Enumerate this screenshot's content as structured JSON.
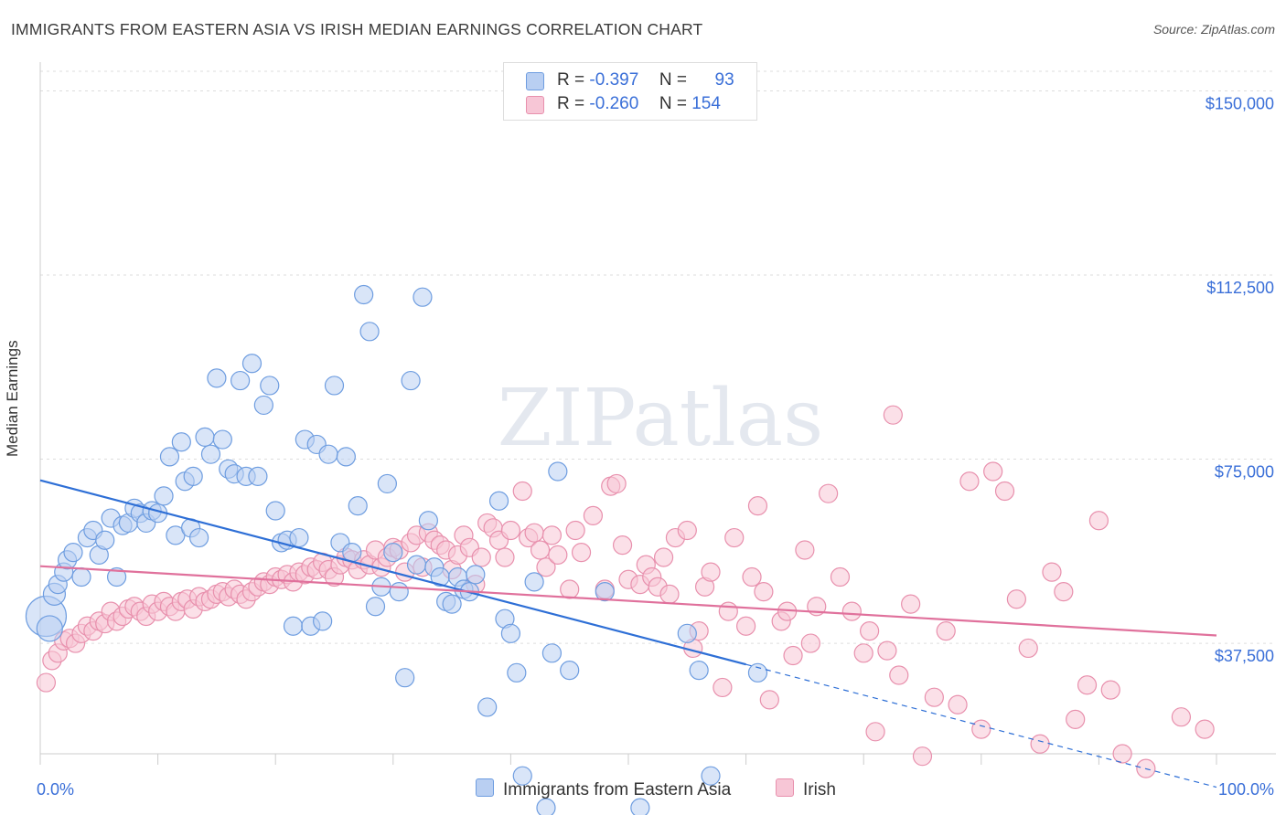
{
  "chart_data": {
    "type": "scatter",
    "title": "IMMIGRANTS FROM EASTERN ASIA VS IRISH MEDIAN EARNINGS CORRELATION CHART",
    "source": "Source: ZipAtlas.com",
    "watermark": "ZIPatlas",
    "xlabel": "",
    "ylabel": "Median Earnings",
    "xlim": [
      0,
      100
    ],
    "ylim": [
      15000,
      154000
    ],
    "x_tick_labels": [
      "0.0%",
      "100.0%"
    ],
    "y_ticks": [
      {
        "value": 150000,
        "label": "$150,000"
      },
      {
        "value": 112500,
        "label": "$112,500"
      },
      {
        "value": 75000,
        "label": "$75,000"
      },
      {
        "value": 37500,
        "label": "$37,500"
      }
    ],
    "legend": [
      {
        "r_label": "R =",
        "r_value": "-0.397",
        "n_label": "N =",
        "n_value": "93"
      },
      {
        "r_label": "R =",
        "r_value": "-0.260",
        "n_label": "N =",
        "n_value": "154"
      }
    ],
    "series": [
      {
        "name": "Immigrants from Eastern Asia",
        "color": "#6e9de0",
        "fill": "#b9cff2",
        "line_color": "#2e6fd6",
        "trend": {
          "x0": 0,
          "y0": 70700,
          "x1": 60,
          "y1": 33200,
          "dash_to_x": 100,
          "dash_to_y": 8200
        },
        "points": [
          [
            0.5,
            43000
          ],
          [
            0.8,
            40500
          ],
          [
            1.2,
            47500
          ],
          [
            1.5,
            49500
          ],
          [
            2,
            52000
          ],
          [
            2.3,
            54500
          ],
          [
            2.8,
            56000
          ],
          [
            3.5,
            51000
          ],
          [
            4,
            59000
          ],
          [
            4.5,
            60500
          ],
          [
            5,
            55500
          ],
          [
            5.5,
            58500
          ],
          [
            6,
            63000
          ],
          [
            6.5,
            51000
          ],
          [
            7,
            61500
          ],
          [
            7.5,
            62000
          ],
          [
            8,
            65000
          ],
          [
            8.5,
            64000
          ],
          [
            9,
            62000
          ],
          [
            9.5,
            64500
          ],
          [
            10,
            64000
          ],
          [
            10.5,
            67500
          ],
          [
            11,
            75500
          ],
          [
            11.5,
            59500
          ],
          [
            12,
            78500
          ],
          [
            12.3,
            70500
          ],
          [
            12.8,
            61000
          ],
          [
            13,
            71500
          ],
          [
            13.5,
            59000
          ],
          [
            14,
            79500
          ],
          [
            14.5,
            76000
          ],
          [
            15,
            91500
          ],
          [
            15.5,
            79000
          ],
          [
            16,
            73000
          ],
          [
            16.5,
            72000
          ],
          [
            17,
            91000
          ],
          [
            17.5,
            71500
          ],
          [
            18,
            94500
          ],
          [
            18.5,
            71500
          ],
          [
            19,
            86000
          ],
          [
            19.5,
            90000
          ],
          [
            20,
            64500
          ],
          [
            20.5,
            58000
          ],
          [
            21,
            58500
          ],
          [
            21.5,
            41000
          ],
          [
            22,
            59000
          ],
          [
            22.5,
            79000
          ],
          [
            23,
            41000
          ],
          [
            23.5,
            78000
          ],
          [
            24,
            42000
          ],
          [
            24.5,
            76000
          ],
          [
            25,
            90000
          ],
          [
            25.5,
            58000
          ],
          [
            26,
            75500
          ],
          [
            26.5,
            56000
          ],
          [
            27,
            65500
          ],
          [
            27.5,
            108500
          ],
          [
            28,
            101000
          ],
          [
            28.5,
            45000
          ],
          [
            29,
            49000
          ],
          [
            29.5,
            70000
          ],
          [
            30,
            56000
          ],
          [
            30.5,
            48000
          ],
          [
            31,
            30500
          ],
          [
            31.5,
            91000
          ],
          [
            32,
            53500
          ],
          [
            32.5,
            108000
          ],
          [
            33,
            62500
          ],
          [
            33.5,
            53000
          ],
          [
            34,
            51000
          ],
          [
            34.5,
            46000
          ],
          [
            35,
            45500
          ],
          [
            35.5,
            51000
          ],
          [
            36,
            48500
          ],
          [
            36.5,
            48000
          ],
          [
            37,
            51500
          ],
          [
            38,
            24500
          ],
          [
            39,
            66500
          ],
          [
            39.5,
            42500
          ],
          [
            40,
            39500
          ],
          [
            40.5,
            31500
          ],
          [
            41,
            10500
          ],
          [
            42,
            50000
          ],
          [
            43,
            4000
          ],
          [
            43.5,
            35500
          ],
          [
            44,
            72500
          ],
          [
            45,
            32000
          ],
          [
            48,
            48000
          ],
          [
            51,
            4000
          ],
          [
            55,
            39500
          ],
          [
            56,
            32000
          ],
          [
            57,
            10500
          ],
          [
            61,
            31500
          ]
        ]
      },
      {
        "name": "Irish",
        "color": "#e890ad",
        "fill": "#f7c6d6",
        "line_color": "#e0719c",
        "trend": {
          "x0": 0,
          "y0": 53200,
          "x1": 100,
          "y1": 39100
        },
        "points": [
          [
            0.5,
            29500
          ],
          [
            1,
            34000
          ],
          [
            1.5,
            35500
          ],
          [
            2,
            38000
          ],
          [
            2.5,
            38500
          ],
          [
            3,
            37500
          ],
          [
            3.5,
            39500
          ],
          [
            4,
            41000
          ],
          [
            4.5,
            40000
          ],
          [
            5,
            42000
          ],
          [
            5.5,
            41500
          ],
          [
            6,
            44000
          ],
          [
            6.5,
            42000
          ],
          [
            7,
            43000
          ],
          [
            7.5,
            44500
          ],
          [
            8,
            45000
          ],
          [
            8.5,
            44000
          ],
          [
            9,
            43000
          ],
          [
            9.5,
            45500
          ],
          [
            10,
            44000
          ],
          [
            10.5,
            46000
          ],
          [
            11,
            45000
          ],
          [
            11.5,
            44000
          ],
          [
            12,
            46000
          ],
          [
            12.5,
            46500
          ],
          [
            13,
            44500
          ],
          [
            13.5,
            47000
          ],
          [
            14,
            46000
          ],
          [
            14.5,
            46500
          ],
          [
            15,
            47500
          ],
          [
            15.5,
            48000
          ],
          [
            16,
            47000
          ],
          [
            16.5,
            48500
          ],
          [
            17,
            47500
          ],
          [
            17.5,
            46500
          ],
          [
            18,
            48000
          ],
          [
            18.5,
            49000
          ],
          [
            19,
            50000
          ],
          [
            19.5,
            49500
          ],
          [
            20,
            51000
          ],
          [
            20.5,
            50500
          ],
          [
            21,
            51500
          ],
          [
            21.5,
            50000
          ],
          [
            22,
            52000
          ],
          [
            22.5,
            51500
          ],
          [
            23,
            53000
          ],
          [
            23.5,
            52500
          ],
          [
            24,
            54000
          ],
          [
            24.5,
            52500
          ],
          [
            25,
            51000
          ],
          [
            25.5,
            53500
          ],
          [
            26,
            55000
          ],
          [
            26.5,
            54500
          ],
          [
            27,
            52500
          ],
          [
            27.5,
            54500
          ],
          [
            28,
            53500
          ],
          [
            28.5,
            56500
          ],
          [
            29,
            53000
          ],
          [
            29.5,
            55000
          ],
          [
            30,
            57000
          ],
          [
            30.5,
            56500
          ],
          [
            31,
            52000
          ],
          [
            31.5,
            58000
          ],
          [
            32,
            59500
          ],
          [
            32.5,
            53000
          ],
          [
            33,
            60000
          ],
          [
            33.5,
            58500
          ],
          [
            34,
            57500
          ],
          [
            34.5,
            56500
          ],
          [
            35,
            52500
          ],
          [
            35.5,
            55500
          ],
          [
            36,
            59500
          ],
          [
            36.5,
            57000
          ],
          [
            37,
            49500
          ],
          [
            37.5,
            55000
          ],
          [
            38,
            62000
          ],
          [
            38.5,
            61000
          ],
          [
            39,
            58500
          ],
          [
            39.5,
            55000
          ],
          [
            40,
            60500
          ],
          [
            41,
            68500
          ],
          [
            41.5,
            59000
          ],
          [
            42,
            60000
          ],
          [
            42.5,
            56500
          ],
          [
            43,
            53000
          ],
          [
            43.5,
            59500
          ],
          [
            44,
            55500
          ],
          [
            45,
            48500
          ],
          [
            45.5,
            60500
          ],
          [
            46,
            56000
          ],
          [
            47,
            63500
          ],
          [
            48,
            48500
          ],
          [
            48.5,
            69500
          ],
          [
            49,
            70000
          ],
          [
            49.5,
            57500
          ],
          [
            50,
            50500
          ],
          [
            51,
            49500
          ],
          [
            51.5,
            53500
          ],
          [
            52,
            51000
          ],
          [
            52.5,
            49000
          ],
          [
            53,
            55000
          ],
          [
            53.5,
            47500
          ],
          [
            54,
            59000
          ],
          [
            55,
            60500
          ],
          [
            55.5,
            36500
          ],
          [
            56,
            40000
          ],
          [
            56.5,
            49000
          ],
          [
            57,
            52000
          ],
          [
            58,
            28500
          ],
          [
            58.5,
            44000
          ],
          [
            59,
            59000
          ],
          [
            60,
            41000
          ],
          [
            60.5,
            51000
          ],
          [
            61,
            65500
          ],
          [
            61.5,
            48000
          ],
          [
            62,
            26000
          ],
          [
            63,
            42000
          ],
          [
            63.5,
            44000
          ],
          [
            64,
            35000
          ],
          [
            65,
            56500
          ],
          [
            65.5,
            37500
          ],
          [
            66,
            45000
          ],
          [
            67,
            68000
          ],
          [
            68,
            51000
          ],
          [
            69,
            44000
          ],
          [
            70,
            35500
          ],
          [
            70.5,
            40000
          ],
          [
            71,
            19500
          ],
          [
            72,
            36000
          ],
          [
            72.5,
            84000
          ],
          [
            73,
            31000
          ],
          [
            74,
            45500
          ],
          [
            75,
            14500
          ],
          [
            76,
            26500
          ],
          [
            77,
            40000
          ],
          [
            78,
            25000
          ],
          [
            79,
            70500
          ],
          [
            80,
            20000
          ],
          [
            81,
            72500
          ],
          [
            82,
            68500
          ],
          [
            83,
            46500
          ],
          [
            84,
            36500
          ],
          [
            85,
            17000
          ],
          [
            86,
            52000
          ],
          [
            87,
            48000
          ],
          [
            88,
            22000
          ],
          [
            89,
            29000
          ],
          [
            90,
            62500
          ],
          [
            91,
            28000
          ],
          [
            92,
            15000
          ],
          [
            94,
            12000
          ],
          [
            97,
            22500
          ],
          [
            99,
            20000
          ]
        ]
      }
    ]
  }
}
